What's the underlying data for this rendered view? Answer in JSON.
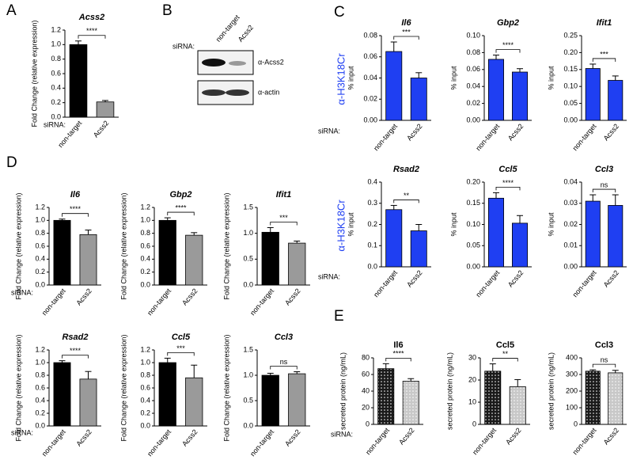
{
  "panel_labels": [
    "A",
    "B",
    "C",
    "D",
    "E"
  ],
  "sirna_label": "siRNA:",
  "row_label": "α-H3K18Cr",
  "blot": {
    "lanes": [
      "non-target",
      "Acss2"
    ],
    "antibodies": [
      "α-Acss2",
      "α-actin"
    ]
  },
  "chart_data": [
    {
      "type": "bar",
      "title": "Acss2",
      "ylabel": "Fold Change (relative expression)",
      "categories": [
        "non-target",
        "Acss2"
      ],
      "values": [
        1.0,
        0.21
      ],
      "errors": [
        0.05,
        0.02
      ],
      "colors": [
        "#000000",
        "#9a9a9a"
      ],
      "significance": "****",
      "ylim": [
        0,
        1.2
      ],
      "yticks": [
        {
          "value": 0,
          "label": "0.0"
        },
        0.2,
        0.4,
        0.6,
        0.8,
        {
          "value": 1,
          "label": "1.0"
        },
        1.2
      ]
    },
    {
      "type": "bar",
      "title": "Il6",
      "ylabel": "% input",
      "categories": [
        "non-target",
        "Acss2"
      ],
      "values": [
        0.065,
        0.04
      ],
      "errors": [
        0.009,
        0.005
      ],
      "colors": [
        "#1f3ff2",
        "#1f3ff2"
      ],
      "significance": "***",
      "ylim": [
        0,
        0.08
      ],
      "yticks": [
        {
          "value": 0,
          "label": "0.00"
        },
        0.02,
        0.04,
        0.06,
        0.08
      ]
    },
    {
      "type": "bar",
      "title": "Gbp2",
      "ylabel": "% input",
      "categories": [
        "non-target",
        "Acss2"
      ],
      "values": [
        0.072,
        0.057
      ],
      "errors": [
        0.005,
        0.004
      ],
      "colors": [
        "#1f3ff2",
        "#1f3ff2"
      ],
      "significance": "****",
      "ylim": [
        0,
        0.1
      ],
      "yticks": [
        {
          "value": 0,
          "label": "0.00"
        },
        0.02,
        0.04,
        0.06,
        0.08,
        {
          "value": 0.1,
          "label": "0.10"
        }
      ]
    },
    {
      "type": "bar",
      "title": "Ifit1",
      "ylabel": "% input",
      "categories": [
        "non-target",
        "Acss2"
      ],
      "values": [
        0.153,
        0.118
      ],
      "errors": [
        0.013,
        0.013
      ],
      "colors": [
        "#1f3ff2",
        "#1f3ff2"
      ],
      "significance": "***",
      "ylim": [
        0,
        0.25
      ],
      "yticks": [
        {
          "value": 0,
          "label": "0.00"
        },
        0.05,
        {
          "value": 0.1,
          "label": "0.10"
        },
        0.15,
        {
          "value": 0.2,
          "label": "0.20"
        },
        0.25
      ]
    },
    {
      "type": "bar",
      "title": "Rsad2",
      "ylabel": "% input",
      "categories": [
        "non-target",
        "Acss2"
      ],
      "values": [
        0.27,
        0.17
      ],
      "errors": [
        0.02,
        0.03
      ],
      "colors": [
        "#1f3ff2",
        "#1f3ff2"
      ],
      "significance": "**",
      "ylim": [
        0,
        0.4
      ],
      "yticks": [
        {
          "value": 0,
          "label": "0.0"
        },
        0.1,
        0.2,
        0.3,
        0.4
      ]
    },
    {
      "type": "bar",
      "title": "Ccl5",
      "ylabel": "% input",
      "categories": [
        "non-target",
        "Acss2"
      ],
      "values": [
        0.162,
        0.103
      ],
      "errors": [
        0.013,
        0.018
      ],
      "colors": [
        "#1f3ff2",
        "#1f3ff2"
      ],
      "significance": "****",
      "ylim": [
        0,
        0.2
      ],
      "yticks": [
        {
          "value": 0,
          "label": "0.00"
        },
        0.05,
        {
          "value": 0.1,
          "label": "0.10"
        },
        0.15,
        {
          "value": 0.2,
          "label": "0.20"
        }
      ]
    },
    {
      "type": "bar",
      "title": "Ccl3",
      "ylabel": "% input",
      "categories": [
        "non-target",
        "Acss2"
      ],
      "values": [
        0.031,
        0.029
      ],
      "errors": [
        0.003,
        0.005
      ],
      "colors": [
        "#1f3ff2",
        "#1f3ff2"
      ],
      "significance": "ns",
      "ylim": [
        0,
        0.04
      ],
      "yticks": [
        {
          "value": 0,
          "label": "0.00"
        },
        0.01,
        0.02,
        0.03,
        0.04
      ]
    },
    {
      "type": "bar",
      "title": "Il6",
      "ylabel": "Fold Change (relative expression)",
      "categories": [
        "non-target",
        "Acss2"
      ],
      "values": [
        1.0,
        0.78
      ],
      "errors": [
        0.02,
        0.07
      ],
      "colors": [
        "#000000",
        "#9a9a9a"
      ],
      "significance": "****",
      "ylim": [
        0,
        1.2
      ],
      "yticks": [
        {
          "value": 0,
          "label": "0.0"
        },
        0.2,
        0.4,
        0.6,
        0.8,
        {
          "value": 1,
          "label": "1.0"
        },
        1.2
      ]
    },
    {
      "type": "bar",
      "title": "Gbp2",
      "ylabel": "Fold Change (relative expression)",
      "categories": [
        "non-target",
        "Acss2"
      ],
      "values": [
        1.0,
        0.77
      ],
      "errors": [
        0.04,
        0.04
      ],
      "colors": [
        "#000000",
        "#9a9a9a"
      ],
      "significance": "****",
      "ylim": [
        0,
        1.2
      ],
      "yticks": [
        {
          "value": 0,
          "label": "0.0"
        },
        0.2,
        0.4,
        0.6,
        0.8,
        {
          "value": 1,
          "label": "1.0"
        },
        1.2
      ]
    },
    {
      "type": "bar",
      "title": "Ifit1",
      "ylabel": "Fold Change (relative expression)",
      "categories": [
        "non-target",
        "Acss2"
      ],
      "values": [
        1.02,
        0.81
      ],
      "errors": [
        0.09,
        0.04
      ],
      "colors": [
        "#000000",
        "#9a9a9a"
      ],
      "significance": "***",
      "ylim": [
        0,
        1.5
      ],
      "yticks": [
        {
          "value": 0,
          "label": "0.0"
        },
        0.5,
        {
          "value": 1,
          "label": "1.0"
        },
        1.5
      ]
    },
    {
      "type": "bar",
      "title": "Rsad2",
      "ylabel": "Fold Change (relative expression)",
      "categories": [
        "non-target",
        "Acss2"
      ],
      "values": [
        1.0,
        0.74
      ],
      "errors": [
        0.03,
        0.12
      ],
      "colors": [
        "#000000",
        "#9a9a9a"
      ],
      "significance": "****",
      "ylim": [
        0,
        1.2
      ],
      "yticks": [
        {
          "value": 0,
          "label": "0.0"
        },
        0.2,
        0.4,
        0.6,
        0.8,
        {
          "value": 1,
          "label": "1.0"
        },
        1.2
      ]
    },
    {
      "type": "bar",
      "title": "Ccl5",
      "ylabel": "Fold Change (relative expression)",
      "categories": [
        "non-target",
        "Acss2"
      ],
      "values": [
        1.0,
        0.76
      ],
      "errors": [
        0.07,
        0.2
      ],
      "colors": [
        "#000000",
        "#9a9a9a"
      ],
      "significance": "***",
      "ylim": [
        0,
        1.2
      ],
      "yticks": [
        {
          "value": 0,
          "label": "0.0"
        },
        0.2,
        0.4,
        0.6,
        0.8,
        {
          "value": 1,
          "label": "1.0"
        },
        1.2
      ]
    },
    {
      "type": "bar",
      "title": "Ccl3",
      "ylabel": "Fold Change (relative expression)",
      "categories": [
        "non-target",
        "Acss2"
      ],
      "values": [
        1.0,
        1.03
      ],
      "errors": [
        0.04,
        0.04
      ],
      "colors": [
        "#000000",
        "#9a9a9a"
      ],
      "significance": "ns",
      "ylim": [
        0,
        1.5
      ],
      "yticks": [
        {
          "value": 0,
          "label": "0.0"
        },
        0.5,
        {
          "value": 1,
          "label": "1.0"
        },
        1.5
      ]
    },
    {
      "type": "bar",
      "title": "Il6",
      "ylabel": "secreted protein (ng/mL)",
      "categories": [
        "non-target",
        "Acss2"
      ],
      "values": [
        67,
        52
      ],
      "errors": [
        6,
        3
      ],
      "colors": [
        "#1a1a1a",
        "#c8c8c8"
      ],
      "pattern": "dots",
      "significance": "****",
      "ylim": [
        0,
        80
      ],
      "yticks": [
        0,
        20,
        40,
        60,
        80
      ]
    },
    {
      "type": "bar",
      "title": "Ccl5",
      "ylabel": "secreted protein (ng/mL)",
      "categories": [
        "non-target",
        "Acss2"
      ],
      "values": [
        24,
        17
      ],
      "errors": [
        3.3,
        3.2
      ],
      "colors": [
        "#1a1a1a",
        "#c8c8c8"
      ],
      "pattern": "dots",
      "significance": "**",
      "ylim": [
        0,
        30
      ],
      "yticks": [
        0,
        10,
        20,
        30
      ]
    },
    {
      "type": "bar",
      "title": "Ccl3",
      "ylabel": "secreted protein (ng/mL)",
      "categories": [
        "non-target",
        "Acss2"
      ],
      "values": [
        320,
        310
      ],
      "errors": [
        8,
        15
      ],
      "colors": [
        "#1a1a1a",
        "#c8c8c8"
      ],
      "pattern": "dots",
      "significance": "ns",
      "ylim": [
        0,
        400
      ],
      "yticks": [
        0,
        100,
        200,
        300,
        400
      ]
    }
  ]
}
